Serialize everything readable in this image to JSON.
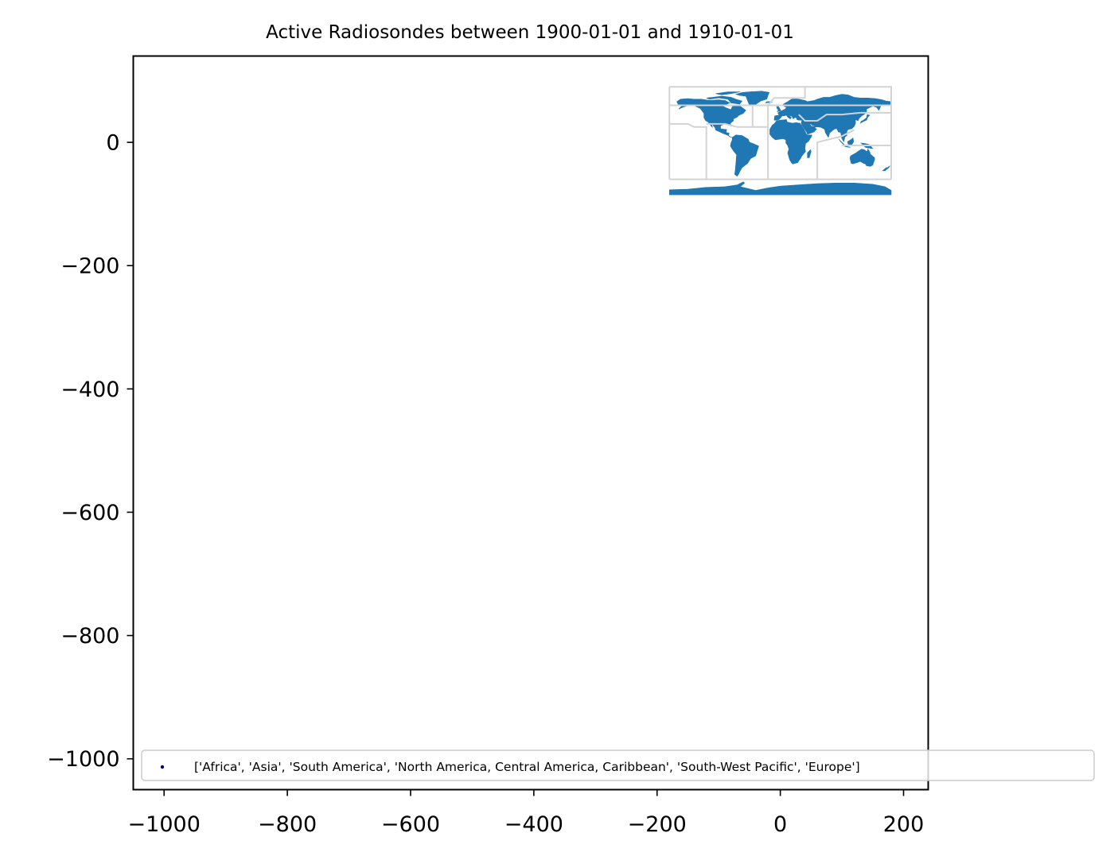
{
  "chart_data": {
    "type": "scatter",
    "title": "Active Radiosondes between 1900-01-01 and 1910-01-01",
    "xlabel": "",
    "ylabel": "",
    "xlim": [
      -1050,
      240
    ],
    "ylim": [
      -1050,
      140
    ],
    "grid": false,
    "xticks": [
      -1000,
      -800,
      -600,
      -400,
      -200,
      0,
      200
    ],
    "xtick_labels": [
      "−1000",
      "−800",
      "−600",
      "−400",
      "−200",
      "0",
      "200"
    ],
    "yticks": [
      0,
      -200,
      -400,
      -600,
      -800,
      -1000
    ],
    "ytick_labels": [
      "0",
      "−200",
      "−400",
      "−600",
      "−800",
      "−1000"
    ],
    "basemap": {
      "description_type": "world-land-polygons",
      "fill_color": "#1f77b4",
      "border_color": "#d3d3d3",
      "extent": {
        "lon": [
          -180,
          180
        ],
        "lat": [
          -90,
          90
        ]
      }
    },
    "series": [
      {
        "name": "['Africa', 'Asia', 'South America', 'North America, Central America, Caribbean', 'South-West Pacific', 'Europe']",
        "color": "#000080",
        "points": []
      }
    ],
    "legend": {
      "placement": "lower-left",
      "entries": [
        {
          "label": "['Africa', 'Asia', 'South America', 'North America, Central America, Caribbean', 'South-West Pacific', 'Europe']",
          "marker_color": "#000080"
        }
      ]
    }
  }
}
